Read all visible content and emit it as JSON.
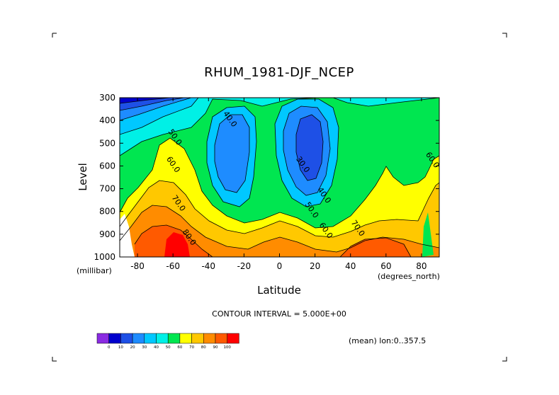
{
  "chart_data": {
    "type": "contour",
    "title": "RHUM_1981-DJF_NCEP",
    "xlabel": "Latitude",
    "x_units": "(degrees_north)",
    "ylabel": "Level",
    "y_units": "(millibar)",
    "xlim": [
      -90,
      90
    ],
    "ylim": [
      1000,
      300
    ],
    "x_ticks": [
      "-80",
      "-60",
      "-40",
      "-20",
      "0",
      "20",
      "40",
      "60",
      "80"
    ],
    "y_ticks": [
      "300",
      "400",
      "500",
      "600",
      "700",
      "800",
      "900",
      "1000"
    ],
    "contour_interval_text": "CONTOUR INTERVAL = 5.000E+00",
    "mean_text": "(mean) lon:0..357.5",
    "colorbar": {
      "levels": [
        "0",
        "10",
        "20",
        "30",
        "40",
        "50",
        "60",
        "70",
        "80",
        "90",
        "100"
      ],
      "colors": [
        "#8a2be2",
        "#0000cd",
        "#1e50e6",
        "#1e8cff",
        "#00c8ff",
        "#00f0e6",
        "#00e650",
        "#ffff00",
        "#ffc800",
        "#ff8c00",
        "#ff5a00",
        "#ff0000"
      ]
    },
    "contour_labels": [
      {
        "text": "40.0",
        "lat": -29,
        "lev": 400
      },
      {
        "text": "50.0",
        "lat": -60,
        "lev": 480
      },
      {
        "text": "60.0",
        "lat": -61,
        "lev": 600
      },
      {
        "text": "70.0",
        "lat": -58,
        "lev": 770
      },
      {
        "text": "80.0",
        "lat": -52,
        "lev": 920
      },
      {
        "text": "30.0",
        "lat": 12,
        "lev": 600
      },
      {
        "text": "40.0",
        "lat": 24,
        "lev": 735
      },
      {
        "text": "50.0",
        "lat": 17,
        "lev": 800
      },
      {
        "text": "60.0",
        "lat": 25,
        "lev": 890
      },
      {
        "text": "70.0",
        "lat": 43,
        "lev": 880
      },
      {
        "text": "60.0",
        "lat": 85,
        "lev": 580
      }
    ]
  }
}
